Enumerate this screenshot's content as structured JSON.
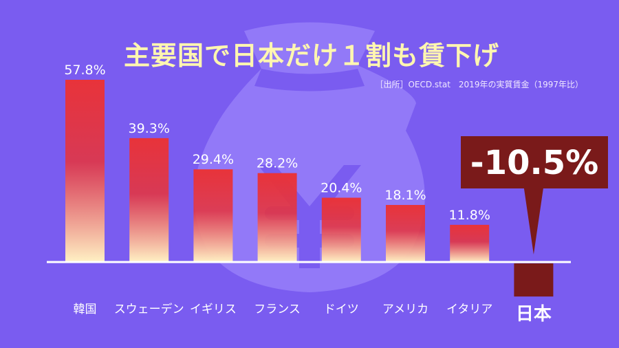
{
  "title": "主要国で日本だけ１割も賃下げ",
  "source": "［出所］OECD.stat　2019年の実質賃金（1997年比）",
  "colors": {
    "background": "#7a5cf0",
    "bar_top": "#e8333a",
    "bar_bottom": "#fff1c4",
    "japan_bar": "#7a1a1a",
    "callout": "#7a1a1a",
    "title": "#fff6b0",
    "label": "#ffffff",
    "baseline": "#ffffff",
    "watermark": "#a791ff"
  },
  "watermark_icon": "money-bag-yen-icon",
  "chart_data": {
    "type": "bar",
    "categories": [
      "韓国",
      "スウェーデン",
      "イギリス",
      "フランス",
      "ドイツ",
      "アメリカ",
      "イタリア",
      "日本"
    ],
    "values": [
      57.8,
      39.3,
      29.4,
      28.2,
      20.4,
      18.1,
      11.8,
      -10.5
    ],
    "value_labels": [
      "57.8%",
      "39.3%",
      "29.4%",
      "28.2%",
      "20.4%",
      "18.1%",
      "11.8%",
      "-10.5%"
    ],
    "unit": "%",
    "ylim": [
      -10.5,
      57.8
    ],
    "highlight_category": "日本",
    "grid": false,
    "legend": "none"
  }
}
